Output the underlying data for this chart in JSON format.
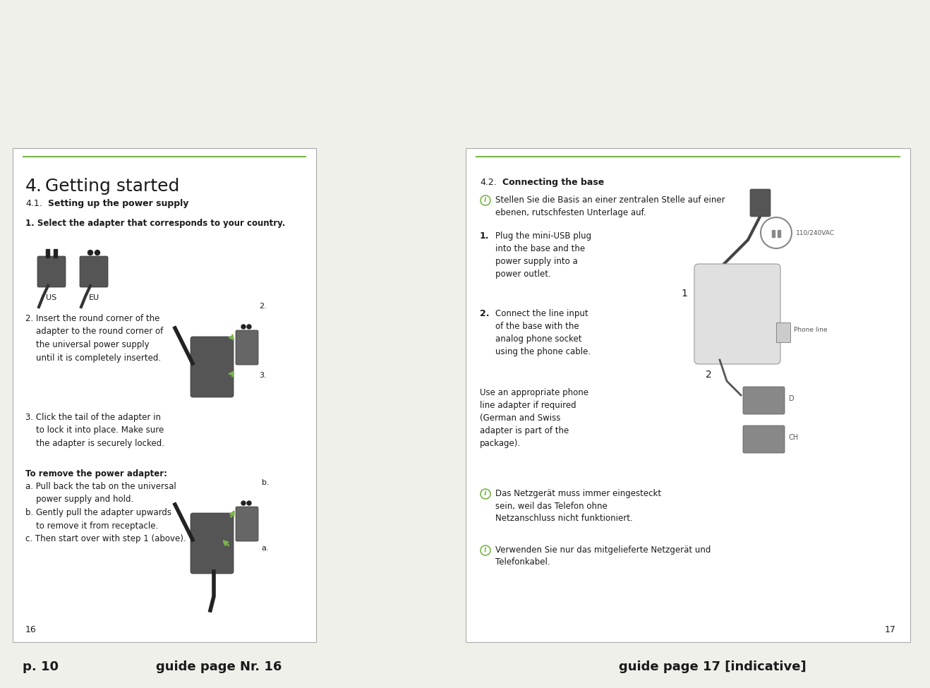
{
  "bg_color": "#f0f0eb",
  "page_bg": "#ffffff",
  "accent_color": "#7ab648",
  "text_color": "#1a1a1a",
  "footer_text_color": "#1a1a1a",
  "left_page": {
    "section_num": "4.",
    "section_title": "Getting started",
    "subsection_num": "4.1.",
    "subsection_title": "Setting up the power supply",
    "step1_bold": "1. Select the adapter that corresponds to your country.",
    "adapter_labels": [
      "US",
      "EU"
    ],
    "page_num": "16"
  },
  "right_page": {
    "subsection_num": "4.2.",
    "subsection_title": "Connecting the base",
    "info_text1": "Stellen Sie die Basis an einer zentralen Stelle auf einer ebenen, rutschfesten Unterlage auf.",
    "step1_num": "1.",
    "step1_text": "Plug the mini-USB plug\ninto the base and the\npower supply into a\npower outlet.",
    "step1_img_label": "110/240VAC",
    "step2_num": "2.",
    "step2_text": "Connect the line input\nof the base with the\nanalog phone socket\nusing the phone cable.",
    "note_text": "Use an appropriate phone\nline adapter if required\n(German and Swiss\nadapter is part of the\npackage).",
    "img_label_phoneline": "Phone line",
    "callout1": "1",
    "callout2": "2",
    "label_d": "D",
    "label_ch": "CH",
    "warning1": "Das Netzgerät muss immer eingesteckt\nsein, weil das Telefon ohne\nNetzanschluss nicht funktioniert.",
    "warning2": "Verwenden Sie nur das mitgelieferte Netzgerät und\nTelefonkabel.",
    "page_num": "17"
  },
  "footer_left": "p. 10",
  "footer_mid": "guide page Nr. 16",
  "footer_right": "guide page 17 [indicative]"
}
